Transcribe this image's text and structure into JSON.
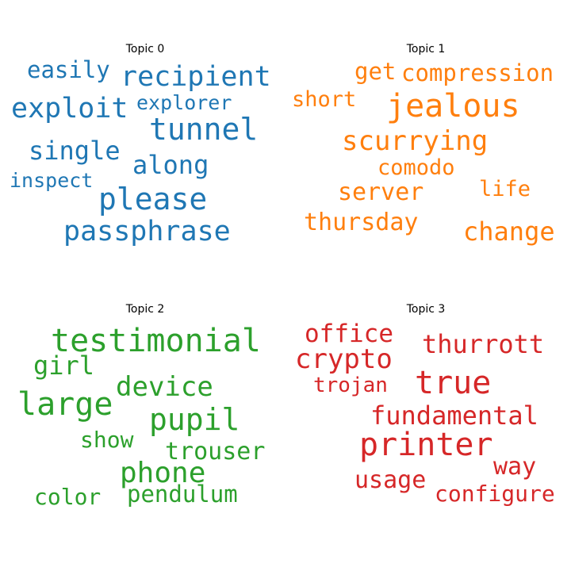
{
  "chart_data": [
    {
      "type": "wordcloud",
      "title": "Topic 0",
      "color": "#1f77b4",
      "words": [
        "easily",
        "recipient",
        "exploit",
        "explorer",
        "tunnel",
        "single",
        "along",
        "inspect",
        "please",
        "passphrase"
      ]
    },
    {
      "type": "wordcloud",
      "title": "Topic 1",
      "color": "#ff7f0e",
      "words": [
        "get",
        "compression",
        "short",
        "jealous",
        "scurrying",
        "comodo",
        "server",
        "life",
        "thursday",
        "change"
      ]
    },
    {
      "type": "wordcloud",
      "title": "Topic 2",
      "color": "#2ca02c",
      "words": [
        "testimonial",
        "girl",
        "device",
        "large",
        "pupil",
        "show",
        "trouser",
        "phone",
        "color",
        "pendulum"
      ]
    },
    {
      "type": "wordcloud",
      "title": "Topic 3",
      "color": "#d62728",
      "words": [
        "office",
        "thurrott",
        "crypto",
        "trojan",
        "true",
        "fundamental",
        "printer",
        "way",
        "usage",
        "configure"
      ]
    }
  ]
}
